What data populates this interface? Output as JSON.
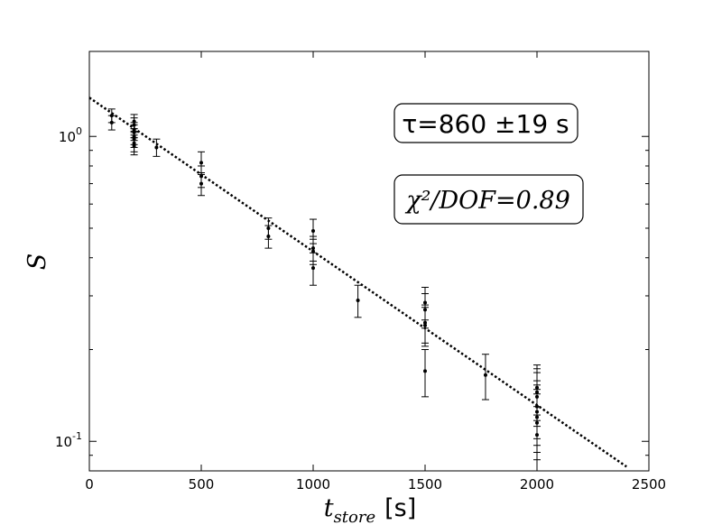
{
  "chart_data": {
    "type": "scatter",
    "xlabel_main": "t",
    "xlabel_sub": "store",
    "xlabel_unit": "[s]",
    "ylabel": "S",
    "xlim": [
      0,
      2500
    ],
    "ylim": [
      0.08,
      1.9
    ],
    "yscale": "log",
    "grid": false,
    "x_ticks": [
      0,
      500,
      1000,
      1500,
      2000,
      2500
    ],
    "x_tick_labels": [
      "0",
      "500",
      "1000",
      "1500",
      "2000",
      "2500"
    ],
    "y_ticks": [
      0.1,
      1.0
    ],
    "y_tick_labels": [
      "10",
      "-1",
      "10",
      "0"
    ],
    "annotations": [
      {
        "text": "τ=860 ±19 s"
      },
      {
        "text": "χ²/DOF=0.89"
      }
    ],
    "fit": {
      "style": "dotted",
      "tau": 860,
      "x": [
        0,
        2400
      ],
      "y": [
        1.34,
        0.0826
      ]
    },
    "points": [
      {
        "x": 100,
        "y": 1.17,
        "err": 0.06
      },
      {
        "x": 100,
        "y": 1.11,
        "err": 0.06
      },
      {
        "x": 200,
        "y": 1.12,
        "err": 0.06
      },
      {
        "x": 200,
        "y": 1.09,
        "err": 0.06
      },
      {
        "x": 200,
        "y": 1.05,
        "err": 0.06
      },
      {
        "x": 200,
        "y": 1.03,
        "err": 0.06
      },
      {
        "x": 200,
        "y": 1.0,
        "err": 0.06
      },
      {
        "x": 200,
        "y": 0.98,
        "err": 0.06
      },
      {
        "x": 200,
        "y": 0.95,
        "err": 0.06
      },
      {
        "x": 200,
        "y": 0.93,
        "err": 0.06
      },
      {
        "x": 300,
        "y": 0.92,
        "err": 0.06
      },
      {
        "x": 500,
        "y": 0.82,
        "err": 0.07
      },
      {
        "x": 500,
        "y": 0.74,
        "err": 0.06
      },
      {
        "x": 500,
        "y": 0.7,
        "err": 0.06
      },
      {
        "x": 800,
        "y": 0.5,
        "err": 0.04
      },
      {
        "x": 800,
        "y": 0.47,
        "err": 0.04
      },
      {
        "x": 1000,
        "y": 0.49,
        "err": 0.045
      },
      {
        "x": 1000,
        "y": 0.43,
        "err": 0.04
      },
      {
        "x": 1000,
        "y": 0.42,
        "err": 0.04
      },
      {
        "x": 1000,
        "y": 0.37,
        "err": 0.045
      },
      {
        "x": 1200,
        "y": 0.29,
        "err": 0.035
      },
      {
        "x": 1500,
        "y": 0.285,
        "err": 0.035
      },
      {
        "x": 1500,
        "y": 0.27,
        "err": 0.035
      },
      {
        "x": 1500,
        "y": 0.245,
        "err": 0.035
      },
      {
        "x": 1500,
        "y": 0.24,
        "err": 0.035
      },
      {
        "x": 1500,
        "y": 0.17,
        "err": 0.03
      },
      {
        "x": 1770,
        "y": 0.165,
        "err": 0.028
      },
      {
        "x": 2000,
        "y": 0.15,
        "err": 0.028
      },
      {
        "x": 2000,
        "y": 0.145,
        "err": 0.028
      },
      {
        "x": 2000,
        "y": 0.14,
        "err": 0.028
      },
      {
        "x": 2000,
        "y": 0.13,
        "err": 0.028
      },
      {
        "x": 2000,
        "y": 0.125,
        "err": 0.028
      },
      {
        "x": 2000,
        "y": 0.12,
        "err": 0.028
      },
      {
        "x": 2000,
        "y": 0.115,
        "err": 0.028
      },
      {
        "x": 2000,
        "y": 0.105,
        "err": 0.025
      }
    ]
  }
}
